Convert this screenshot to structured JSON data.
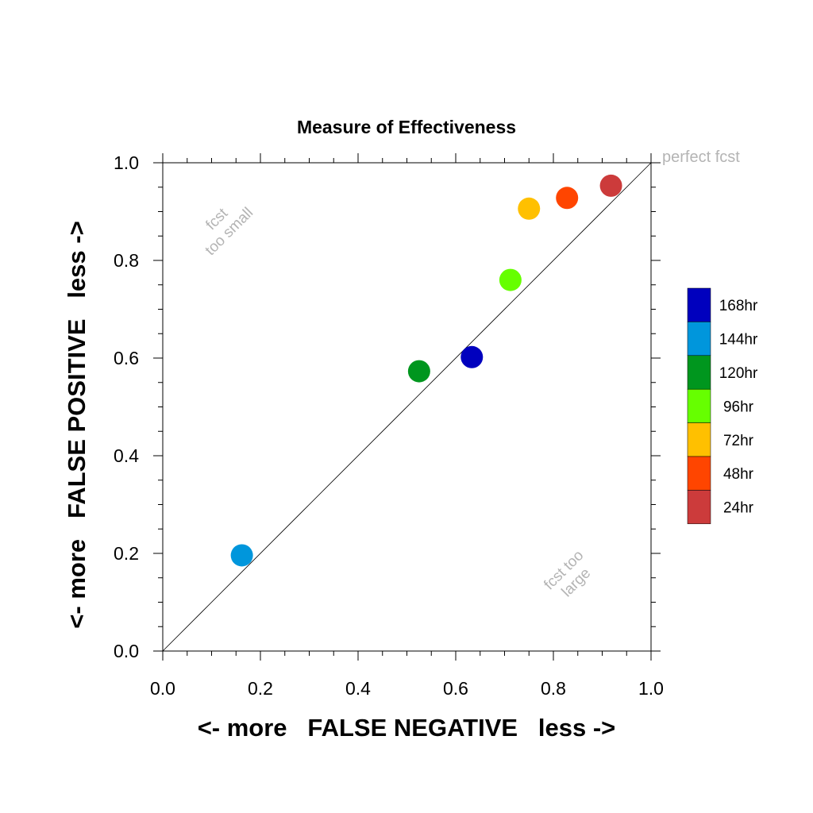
{
  "chart_data": {
    "type": "scatter",
    "title": "Measure of Effectiveness",
    "xlabel": "<- more   FALSE NEGATIVE   less ->",
    "ylabel": "<- more   FALSE POSITIVE   less ->",
    "xlim": [
      0.0,
      1.0
    ],
    "ylim": [
      0.0,
      1.0
    ],
    "xticks": [
      "0.0",
      "0.2",
      "0.4",
      "0.6",
      "0.8",
      "1.0"
    ],
    "yticks": [
      "0.0",
      "0.2",
      "0.4",
      "0.6",
      "0.8",
      "1.0"
    ],
    "grid": false,
    "diagonal_reference_line": true,
    "legend_placement": "right",
    "annotations": {
      "top_left": [
        "fcst",
        "too small"
      ],
      "bottom_right": [
        "fcst too",
        "large"
      ],
      "corner": "perfect fcst"
    },
    "points": [
      {
        "label": "24hr",
        "x": 0.918,
        "y": 0.953,
        "color": "#cc3b3b"
      },
      {
        "label": "48hr",
        "x": 0.828,
        "y": 0.928,
        "color": "#ff4500"
      },
      {
        "label": "72hr",
        "x": 0.75,
        "y": 0.906,
        "color": "#ffc000"
      },
      {
        "label": "96hr",
        "x": 0.712,
        "y": 0.76,
        "color": "#66ff00"
      },
      {
        "label": "120hr",
        "x": 0.525,
        "y": 0.573,
        "color": "#00961e"
      },
      {
        "label": "144hr",
        "x": 0.162,
        "y": 0.196,
        "color": "#0096dc"
      },
      {
        "label": "168hr",
        "x": 0.633,
        "y": 0.602,
        "color": "#0000be"
      }
    ],
    "legend": [
      {
        "label": "168hr",
        "color": "#0000be"
      },
      {
        "label": "144hr",
        "color": "#0096dc"
      },
      {
        "label": "120hr",
        "color": "#00961e"
      },
      {
        "label": "96hr",
        "color": "#66ff00"
      },
      {
        "label": "72hr",
        "color": "#ffc000"
      },
      {
        "label": "48hr",
        "color": "#ff4500"
      },
      {
        "label": "24hr",
        "color": "#cc3b3b"
      }
    ],
    "annotation_color": "#b4b4b4"
  }
}
